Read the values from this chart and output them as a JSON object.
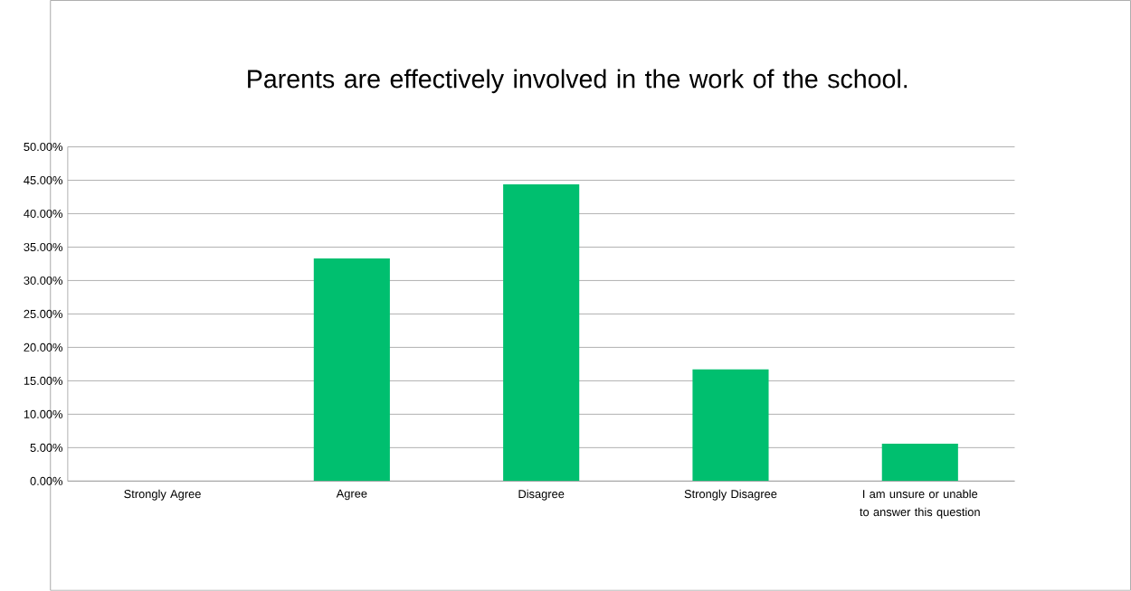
{
  "chart_data": {
    "type": "bar",
    "title": "Parents are effectively involved in the work of the school.",
    "categories": [
      "Strongly Agree",
      "Agree",
      "Disagree",
      "Strongly Disagree",
      "I am unsure or unable to answer this question"
    ],
    "values": [
      0,
      33.3,
      44.4,
      16.7,
      5.6
    ],
    "color": "#00bf6f",
    "grid": "y",
    "ylim": [
      0,
      50
    ],
    "yticks": [
      {
        "value": 0,
        "label": "0.00%"
      },
      {
        "value": 5,
        "label": "5.00%"
      },
      {
        "value": 10,
        "label": "10.00%"
      },
      {
        "value": 15,
        "label": "15.00%"
      },
      {
        "value": 20,
        "label": "20.00%"
      },
      {
        "value": 25,
        "label": "25.00%"
      },
      {
        "value": 30,
        "label": "30.00%"
      },
      {
        "value": 35,
        "label": "35.00%"
      },
      {
        "value": 40,
        "label": "40.00%"
      },
      {
        "value": 45,
        "label": "45.00%"
      },
      {
        "value": 50,
        "label": "50.00%"
      }
    ]
  }
}
